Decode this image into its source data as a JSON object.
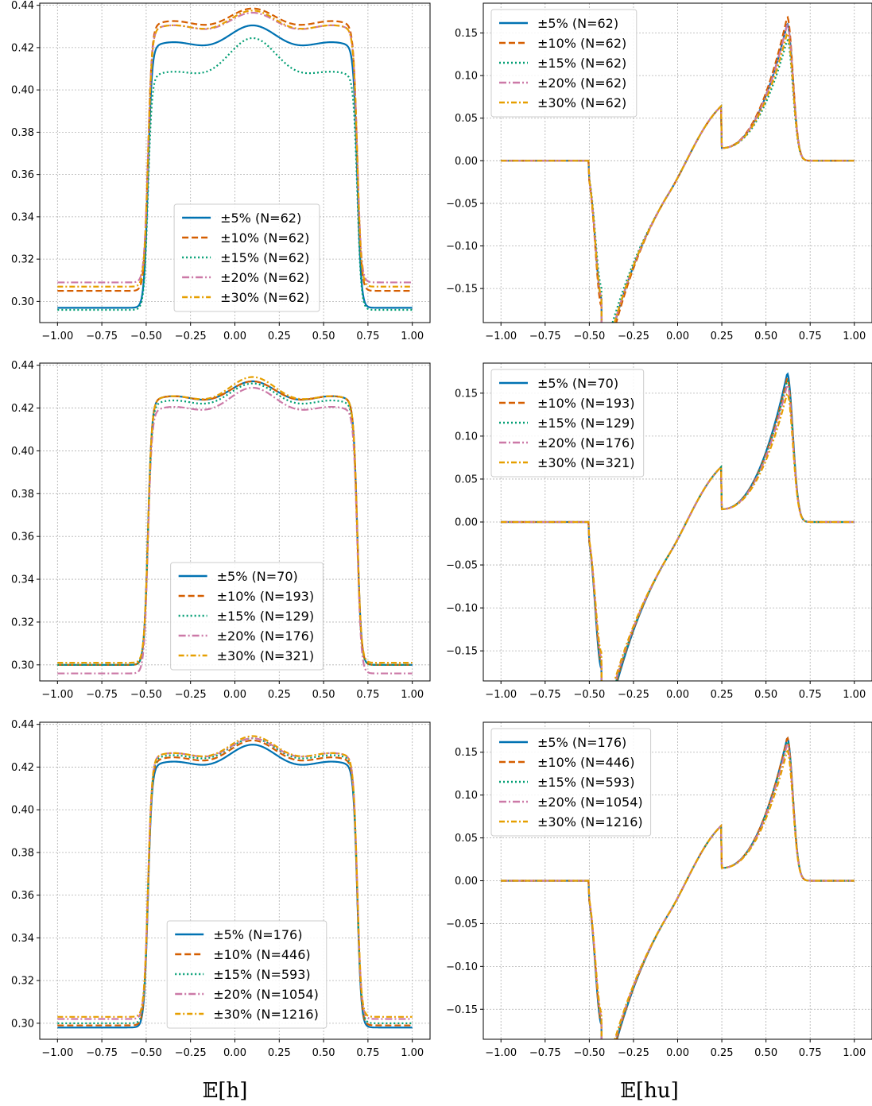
{
  "column_labels": [
    "𝔼[h]",
    "𝔼[hu]"
  ],
  "series_colors": [
    "#0072b2",
    "#d55e00",
    "#009e73",
    "#cc79a7",
    "#e69f00"
  ],
  "series_dashes": [
    "",
    "8,4",
    "2,3",
    "9,3,2,3",
    "7,3,2,3"
  ],
  "chart_data": [
    {
      "type": "line",
      "quantity": "h",
      "xlim": [
        -1.1,
        1.1
      ],
      "ylim": [
        0.29,
        0.441
      ],
      "xticks": [
        -1.0,
        -0.75,
        -0.5,
        -0.25,
        0.0,
        0.25,
        0.5,
        0.75,
        1.0
      ],
      "xtick_labels": [
        "−1.00",
        "−0.75",
        "−0.50",
        "−0.25",
        "0.00",
        "0.25",
        "0.50",
        "0.75",
        "1.00"
      ],
      "yticks": [
        0.3,
        0.32,
        0.34,
        0.36,
        0.38,
        0.4,
        0.42,
        0.44
      ],
      "ytick_labels": [
        "0.30",
        "0.32",
        "0.34",
        "0.36",
        "0.38",
        "0.40",
        "0.42",
        "0.44"
      ],
      "grid": true,
      "legend_position": "lower center",
      "series": [
        {
          "name": "±5%  (N=62)",
          "base": 0.297,
          "peak": 0.429,
          "shoulder": 0.421
        },
        {
          "name": "±10%  (N=62)",
          "base": 0.305,
          "peak": 0.437,
          "shoulder": 0.431
        },
        {
          "name": "±15%  (N=62)",
          "base": 0.296,
          "peak": 0.423,
          "shoulder": 0.407
        },
        {
          "name": "±20%  (N=62)",
          "base": 0.309,
          "peak": 0.435,
          "shoulder": 0.429
        },
        {
          "name": "±30%  (N=62)",
          "base": 0.307,
          "peak": 0.436,
          "shoulder": 0.429
        }
      ]
    },
    {
      "type": "line",
      "quantity": "hu",
      "xlim": [
        -1.1,
        1.1
      ],
      "ylim": [
        -0.19,
        0.185
      ],
      "xticks": [
        -1.0,
        -0.75,
        -0.5,
        -0.25,
        0.0,
        0.25,
        0.5,
        0.75,
        1.0
      ],
      "xtick_labels": [
        "−1.00",
        "−0.75",
        "−0.50",
        "−0.25",
        "0.00",
        "0.25",
        "0.50",
        "0.75",
        "1.00"
      ],
      "yticks": [
        -0.15,
        -0.1,
        -0.05,
        0.0,
        0.05,
        0.1,
        0.15
      ],
      "ytick_labels": [
        "−0.15",
        "−0.10",
        "−0.05",
        "0.00",
        "0.05",
        "0.10",
        "0.15"
      ],
      "grid": true,
      "legend_position": "upper left",
      "series": [
        {
          "name": "±5%  (N=62)",
          "min": -0.162,
          "max": 0.161
        },
        {
          "name": "±10%  (N=62)",
          "min": -0.171,
          "max": 0.169
        },
        {
          "name": "±15%  (N=62)",
          "min": -0.148,
          "max": 0.142
        },
        {
          "name": "±20%  (N=62)",
          "min": -0.16,
          "max": 0.16
        },
        {
          "name": "±30%  (N=62)",
          "min": -0.16,
          "max": 0.15
        }
      ]
    },
    {
      "type": "line",
      "quantity": "h",
      "xlim": [
        -1.1,
        1.1
      ],
      "ylim": [
        0.2925,
        0.441
      ],
      "xticks": [
        -1.0,
        -0.75,
        -0.5,
        -0.25,
        0.0,
        0.25,
        0.5,
        0.75,
        1.0
      ],
      "xtick_labels": [
        "−1.00",
        "−0.75",
        "−0.50",
        "−0.25",
        "0.00",
        "0.25",
        "0.50",
        "0.75",
        "1.00"
      ],
      "yticks": [
        0.3,
        0.32,
        0.34,
        0.36,
        0.38,
        0.4,
        0.42,
        0.44
      ],
      "ytick_labels": [
        "0.30",
        "0.32",
        "0.34",
        "0.36",
        "0.38",
        "0.40",
        "0.42",
        "0.44"
      ],
      "grid": true,
      "legend_position": "lower center",
      "series": [
        {
          "name": "±5%  (N=70)",
          "base": 0.3,
          "peak": 0.431,
          "shoulder": 0.424
        },
        {
          "name": "±10%  (N=193)",
          "base": 0.3,
          "peak": 0.431,
          "shoulder": 0.424
        },
        {
          "name": "±15%  (N=129)",
          "base": 0.3,
          "peak": 0.43,
          "shoulder": 0.422
        },
        {
          "name": "±20%  (N=176)",
          "base": 0.296,
          "peak": 0.428,
          "shoulder": 0.419
        },
        {
          "name": "±30%  (N=321)",
          "base": 0.301,
          "peak": 0.433,
          "shoulder": 0.424
        }
      ]
    },
    {
      "type": "line",
      "quantity": "hu",
      "xlim": [
        -1.1,
        1.1
      ],
      "ylim": [
        -0.185,
        0.185
      ],
      "xticks": [
        -1.0,
        -0.75,
        -0.5,
        -0.25,
        0.0,
        0.25,
        0.5,
        0.75,
        1.0
      ],
      "xtick_labels": [
        "−1.00",
        "−0.75",
        "−0.50",
        "−0.25",
        "0.00",
        "0.25",
        "0.50",
        "0.75",
        "1.00"
      ],
      "yticks": [
        -0.15,
        -0.1,
        -0.05,
        0.0,
        0.05,
        0.1,
        0.15
      ],
      "ytick_labels": [
        "−0.15",
        "−0.10",
        "−0.05",
        "0.00",
        "0.05",
        "0.10",
        "0.15"
      ],
      "grid": true,
      "legend_position": "upper left",
      "series": [
        {
          "name": "±5%  (N=70)",
          "min": -0.171,
          "max": 0.173
        },
        {
          "name": "±10%  (N=193)",
          "min": -0.166,
          "max": 0.168
        },
        {
          "name": "±15%  (N=129)",
          "min": -0.163,
          "max": 0.165
        },
        {
          "name": "±20%  (N=176)",
          "min": -0.158,
          "max": 0.16
        },
        {
          "name": "±30%  (N=321)",
          "min": -0.152,
          "max": 0.15
        }
      ]
    },
    {
      "type": "line",
      "quantity": "h",
      "xlim": [
        -1.1,
        1.1
      ],
      "ylim": [
        0.2925,
        0.441
      ],
      "xticks": [
        -1.0,
        -0.75,
        -0.5,
        -0.25,
        0.0,
        0.25,
        0.5,
        0.75,
        1.0
      ],
      "xtick_labels": [
        "−1.00",
        "−0.75",
        "−0.50",
        "−0.25",
        "0.00",
        "0.25",
        "0.50",
        "0.75",
        "1.00"
      ],
      "yticks": [
        0.3,
        0.32,
        0.34,
        0.36,
        0.38,
        0.4,
        0.42,
        0.44
      ],
      "ytick_labels": [
        "0.30",
        "0.32",
        "0.34",
        "0.36",
        "0.38",
        "0.40",
        "0.42",
        "0.44"
      ],
      "grid": true,
      "legend_position": "lower center",
      "series": [
        {
          "name": "±5%  (N=176)",
          "base": 0.298,
          "peak": 0.429,
          "shoulder": 0.421
        },
        {
          "name": "±10%  (N=446)",
          "base": 0.299,
          "peak": 0.431,
          "shoulder": 0.423
        },
        {
          "name": "±15%  (N=593)",
          "base": 0.3,
          "peak": 0.432,
          "shoulder": 0.424
        },
        {
          "name": "±20%  (N=1054)",
          "base": 0.302,
          "peak": 0.432,
          "shoulder": 0.425
        },
        {
          "name": "±30%  (N=1216)",
          "base": 0.303,
          "peak": 0.433,
          "shoulder": 0.425
        }
      ]
    },
    {
      "type": "line",
      "quantity": "hu",
      "xlim": [
        -1.1,
        1.1
      ],
      "ylim": [
        -0.185,
        0.185
      ],
      "xticks": [
        -1.0,
        -0.75,
        -0.5,
        -0.25,
        0.0,
        0.25,
        0.5,
        0.75,
        1.0
      ],
      "xtick_labels": [
        "−1.00",
        "−0.75",
        "−0.50",
        "−0.25",
        "0.00",
        "0.25",
        "0.50",
        "0.75",
        "1.00"
      ],
      "yticks": [
        -0.15,
        -0.1,
        -0.05,
        0.0,
        0.05,
        0.1,
        0.15
      ],
      "ytick_labels": [
        "−0.15",
        "−0.10",
        "−0.05",
        "0.00",
        "0.05",
        "0.10",
        "0.15"
      ],
      "grid": true,
      "legend_position": "upper left",
      "series": [
        {
          "name": "±5%  (N=176)",
          "min": -0.168,
          "max": 0.167
        },
        {
          "name": "±10%  (N=446)",
          "min": -0.166,
          "max": 0.167
        },
        {
          "name": "±15%  (N=593)",
          "min": -0.162,
          "max": 0.163
        },
        {
          "name": "±20%  (N=1054)",
          "min": -0.158,
          "max": 0.16
        },
        {
          "name": "±30%  (N=1216)",
          "min": -0.154,
          "max": 0.152
        }
      ]
    }
  ]
}
